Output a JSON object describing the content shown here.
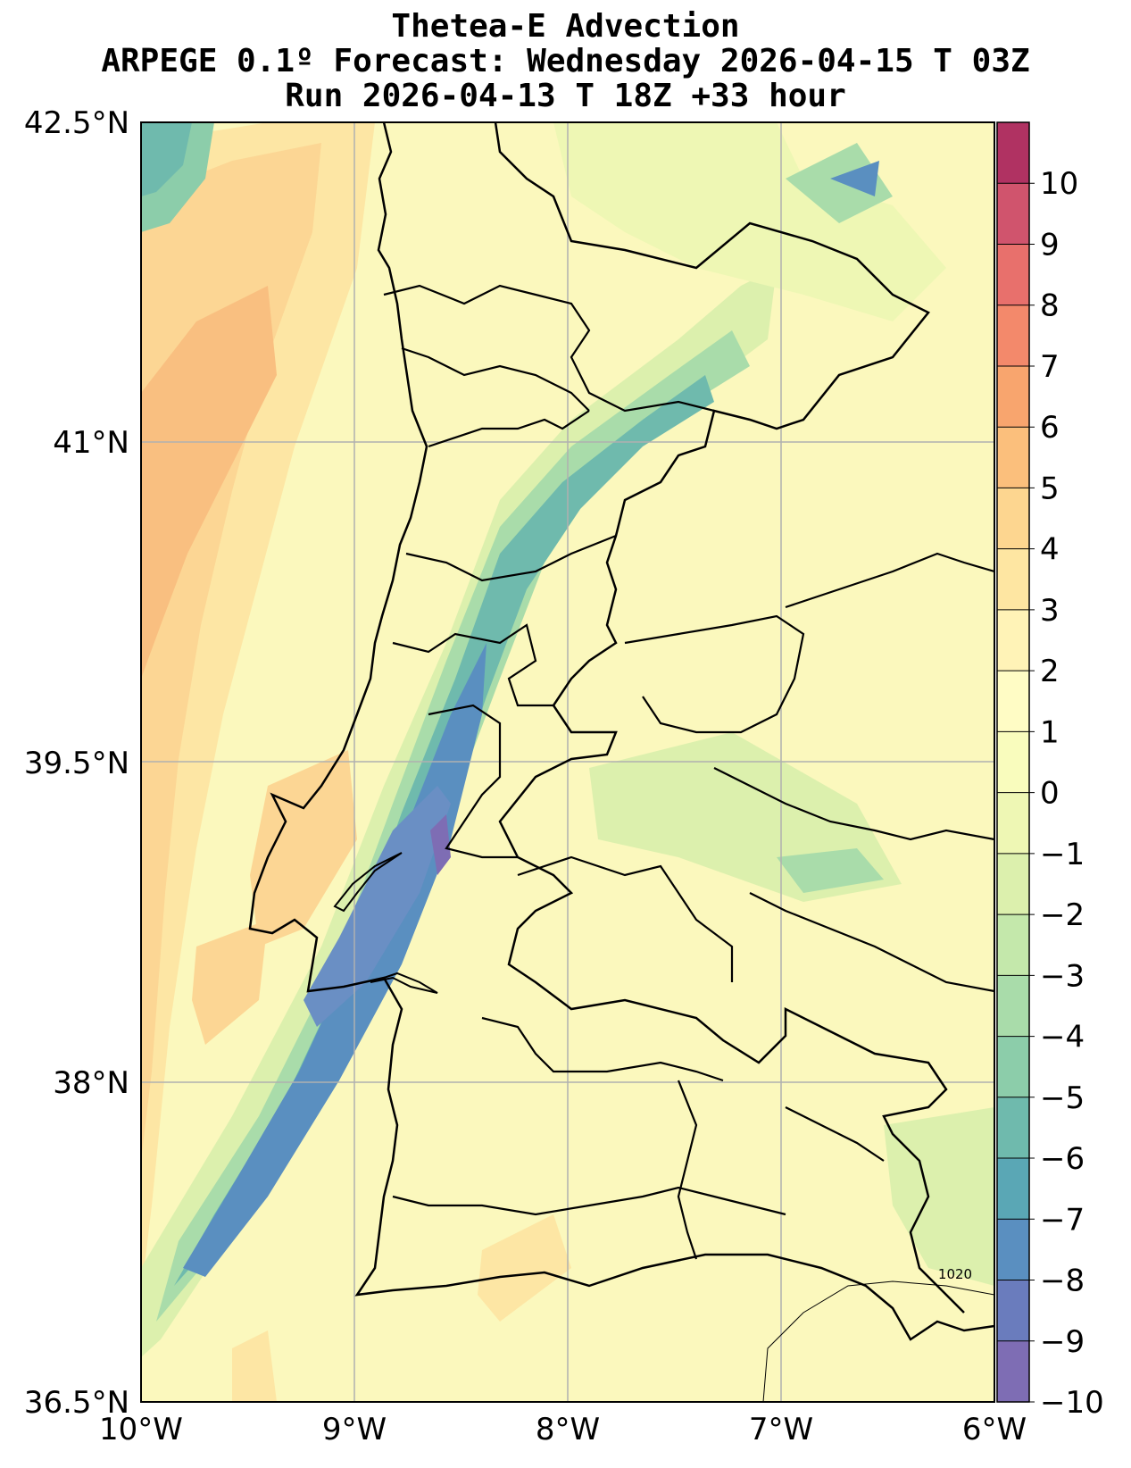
{
  "title": {
    "line1": "Thetea-E Advection",
    "line2": "ARPEGE 0.1º Forecast: Wednesday 2026-04-15 T 03Z",
    "line3": "Run 2026-04-13 T 18Z +33 hour"
  },
  "axes": {
    "lat_ticks": [
      "42.5°N",
      "41°N",
      "39.5°N",
      "38°N",
      "36.5°N"
    ],
    "lon_ticks": [
      "10°W",
      "9°W",
      "8°W",
      "7°W",
      "6°W"
    ],
    "lat_range": [
      36.5,
      42.5
    ],
    "lon_range": [
      -10,
      -6
    ],
    "grid": true
  },
  "colorbar": {
    "labels": [
      "10",
      "9",
      "8",
      "7",
      "6",
      "5",
      "4",
      "3",
      "2",
      "1",
      "0",
      "−1",
      "−2",
      "−3",
      "−4",
      "−5",
      "−6",
      "−7",
      "−8",
      "−9",
      "−10"
    ],
    "colors": [
      "#b03262",
      "#d0546d",
      "#e8706c",
      "#f3896b",
      "#f8a56e",
      "#fbbf7c",
      "#fdd690",
      "#fee6a2",
      "#fff3b7",
      "#fffcc5",
      "#f9fcbd",
      "#eef7b4",
      "#dcf0ad",
      "#c4e8ab",
      "#a9dcaa",
      "#8ccdaa",
      "#6fbaad",
      "#5aa7b5",
      "#5a8fc0",
      "#6a7cbd",
      "#7e6db4"
    ]
  },
  "contour_label": "1020",
  "colors": {
    "ocean_warm": "#fbc88a",
    "ocean_neutral": "#fdf3b5",
    "band_cold": "#6a8fc4",
    "land": "#fcfac0"
  }
}
